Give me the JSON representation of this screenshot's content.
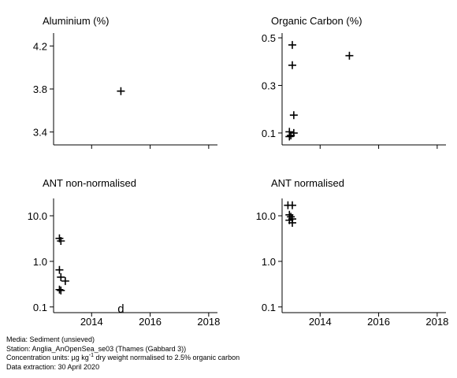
{
  "chart_data": [
    {
      "type": "scatter",
      "title": "Aluminium (%)",
      "yscale": "linear",
      "ylim": [
        3.28,
        4.32
      ],
      "yticks": [
        3.4,
        3.8,
        4.2
      ],
      "ytick_labels": [
        "3.4",
        "3.8",
        "4.2"
      ],
      "xlim": [
        2012.7,
        2018.3
      ],
      "xticks": [
        2014,
        2016,
        2018
      ],
      "xtick_labels": [],
      "points": [
        {
          "x": 2015.0,
          "y": 3.78,
          "marker": "+"
        }
      ]
    },
    {
      "type": "scatter",
      "title": "Organic Carbon (%)",
      "yscale": "linear",
      "ylim": [
        0.05,
        0.52
      ],
      "yticks": [
        0.1,
        0.3,
        0.5
      ],
      "ytick_labels": [
        "0.1",
        "0.3",
        "0.5"
      ],
      "xlim": [
        2012.7,
        2018.3
      ],
      "xticks": [
        2014,
        2016,
        2018
      ],
      "xtick_labels": [],
      "points": [
        {
          "x": 2013.05,
          "y": 0.47,
          "marker": "+"
        },
        {
          "x": 2013.05,
          "y": 0.385,
          "marker": "+"
        },
        {
          "x": 2013.1,
          "y": 0.175,
          "marker": "+"
        },
        {
          "x": 2012.95,
          "y": 0.105,
          "marker": "+"
        },
        {
          "x": 2013.1,
          "y": 0.1,
          "marker": "+"
        },
        {
          "x": 2013.0,
          "y": 0.09,
          "marker": "+"
        },
        {
          "x": 2012.95,
          "y": 0.085,
          "marker": "+"
        },
        {
          "x": 2015.0,
          "y": 0.425,
          "marker": "+"
        }
      ]
    },
    {
      "type": "scatter",
      "title": "ANT non-normalised",
      "yscale": "log",
      "ylim": [
        0.075,
        24
      ],
      "yticks": [
        0.1,
        1,
        10
      ],
      "ytick_labels": [
        "0.1",
        "1.0",
        "10.0"
      ],
      "xlim": [
        2012.7,
        2018.3
      ],
      "xticks": [
        2014,
        2016,
        2018
      ],
      "xtick_labels": [
        "2014",
        "2016",
        "2018"
      ],
      "points": [
        {
          "x": 2012.9,
          "y": 3.2,
          "marker": "+"
        },
        {
          "x": 2012.95,
          "y": 2.8,
          "marker": "+"
        },
        {
          "x": 2012.9,
          "y": 0.65,
          "marker": "+"
        },
        {
          "x": 2012.95,
          "y": 0.45,
          "marker": "+"
        },
        {
          "x": 2013.1,
          "y": 0.37,
          "marker": "+"
        },
        {
          "x": 2012.9,
          "y": 0.24,
          "marker": "+"
        },
        {
          "x": 2012.95,
          "y": 0.23,
          "marker": "+"
        },
        {
          "x": 2015.0,
          "y": 0.092,
          "marker": "d"
        }
      ]
    },
    {
      "type": "scatter",
      "title": "ANT normalised",
      "yscale": "log",
      "ylim": [
        0.075,
        24
      ],
      "yticks": [
        0.1,
        1,
        10
      ],
      "ytick_labels": [
        "0.1",
        "1.0",
        "10.0"
      ],
      "xlim": [
        2012.7,
        2018.3
      ],
      "xticks": [
        2014,
        2016,
        2018
      ],
      "xtick_labels": [
        "2014",
        "2016",
        "2018"
      ],
      "points": [
        {
          "x": 2012.9,
          "y": 17.0,
          "marker": "+"
        },
        {
          "x": 2013.05,
          "y": 17.0,
          "marker": "+"
        },
        {
          "x": 2012.95,
          "y": 10.5,
          "marker": "+"
        },
        {
          "x": 2013.0,
          "y": 9.5,
          "marker": "+"
        },
        {
          "x": 2013.05,
          "y": 8.5,
          "marker": "+"
        },
        {
          "x": 2012.95,
          "y": 8.0,
          "marker": "+"
        },
        {
          "x": 2013.05,
          "y": 7.0,
          "marker": "+"
        }
      ]
    }
  ],
  "footer": {
    "media": "Media: Sediment (unsieved)",
    "station": "Station: Anglia_AnOpenSea_se03 (Thames (Gabbard 3))",
    "units_prefix": "Concentration units:  µg kg",
    "units_sup": "-1",
    "units_suffix": " dry weight normalised to 2.5% organic carbon",
    "extraction": "Data extraction: 30 April 2020"
  }
}
